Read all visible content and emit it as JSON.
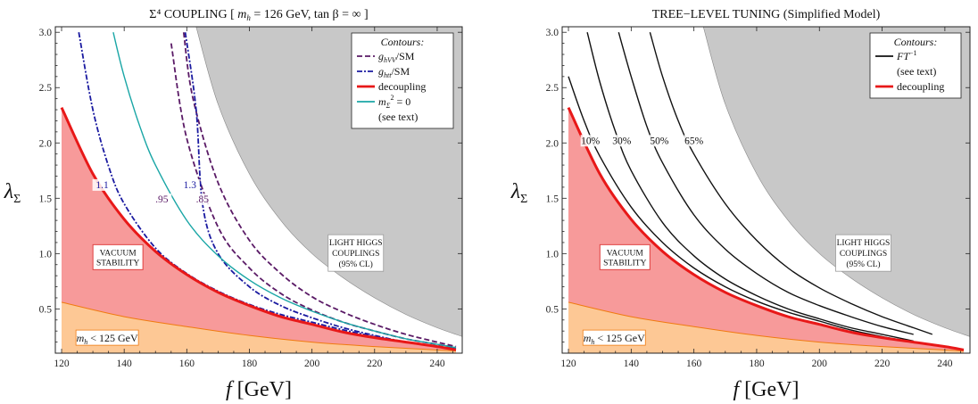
{
  "chart_data": [
    {
      "type": "line",
      "title": "Σ⁴ COUPLING  [ mh = 126 GeV, tan β = ∞ ]",
      "title_parts": {
        "main": "Σ⁴ COUPLING  [ ",
        "mh_sym": "m",
        "mh_sub": "h",
        "mh_rest": " = 126 GeV, tan β = ∞ ]"
      },
      "xlabel": "f [GeV]",
      "ylabel": "λΣ",
      "xlim": [
        118,
        248
      ],
      "ylim": [
        0.1,
        3.05
      ],
      "xticks": [
        120,
        140,
        160,
        180,
        200,
        220,
        240
      ],
      "yticks": [
        0.5,
        1.0,
        1.5,
        2.0,
        2.5,
        3.0
      ],
      "ytick_labels": [
        "0.5",
        "1.0",
        "1.5",
        "2.0",
        "2.5",
        "3.0"
      ],
      "regions": {
        "light_higgs": {
          "label_lines": [
            "LIGHT HIGGS",
            "COUPLINGS",
            "(95% CL)"
          ],
          "color": "#c8c8c8",
          "x_start_at_top": 163
        },
        "vacuum_stability": {
          "label_lines": [
            "VACUUM",
            "STABILITY"
          ],
          "color": "#f79a9a"
        },
        "mh_bound": {
          "label": "mh < 125 GeV",
          "color": "#fdc895"
        }
      },
      "decoupling": {
        "x": [
          120,
          130,
          140,
          150,
          160,
          170,
          180,
          190,
          200,
          210,
          220,
          230,
          240,
          246
        ],
        "y": [
          2.32,
          1.72,
          1.31,
          1.02,
          0.81,
          0.65,
          0.53,
          0.43,
          0.36,
          0.29,
          0.24,
          0.2,
          0.16,
          0.13
        ],
        "color": "#e81818"
      },
      "mh125": {
        "x": [
          120,
          140,
          160,
          180,
          200,
          220,
          246
        ],
        "y": [
          0.56,
          0.43,
          0.34,
          0.26,
          0.2,
          0.16,
          0.12
        ],
        "color": "#f07a10"
      },
      "series": [
        {
          "label": ".95",
          "x": [
            155,
            160,
            170,
            180,
            190,
            200,
            210,
            220,
            230,
            240,
            246
          ],
          "y": [
            2.9,
            2.04,
            1.24,
            0.87,
            0.64,
            0.49,
            0.38,
            0.3,
            0.23,
            0.18,
            0.15
          ],
          "color": "#5a1a66",
          "dash": "6,3"
        },
        {
          "label": ".85",
          "x": [
            159,
            162,
            170,
            180,
            190,
            200,
            210,
            220,
            230,
            240,
            246
          ],
          "y": [
            3.0,
            2.4,
            1.64,
            1.12,
            0.82,
            0.61,
            0.47,
            0.36,
            0.27,
            0.2,
            0.16
          ],
          "color": "#5a1a66",
          "dash": "6,3"
        },
        {
          "label": "1.1",
          "x": [
            125.5,
            130,
            135,
            140,
            150,
            160,
            170,
            180,
            190,
            200,
            210,
            220,
            230,
            240,
            246
          ],
          "y": [
            3.0,
            2.3,
            1.79,
            1.45,
            1.05,
            0.82,
            0.66,
            0.54,
            0.45,
            0.38,
            0.31,
            0.25,
            0.2,
            0.16,
            0.14
          ],
          "color": "#1a1aa0",
          "dash": "6,2,2,2"
        },
        {
          "label": "1.3",
          "x": [
            159.5,
            163,
            165,
            170,
            180,
            190,
            200,
            210,
            220,
            230,
            240,
            246
          ],
          "y": [
            3.0,
            2.3,
            1.45,
            1.0,
            0.7,
            0.53,
            0.42,
            0.33,
            0.26,
            0.2,
            0.16,
            0.14
          ],
          "color": "#1a1aa0",
          "dash": "6,2,2,2"
        },
        {
          "label": "mΣ² = 0",
          "x": [
            136.5,
            140,
            145,
            150,
            160,
            170,
            180,
            190,
            200,
            210,
            220,
            230,
            240,
            246
          ],
          "y": [
            3.0,
            2.6,
            2.15,
            1.8,
            1.3,
            0.98,
            0.76,
            0.6,
            0.48,
            0.38,
            0.3,
            0.23,
            0.18,
            0.15
          ],
          "color": "#1aa6a6",
          "dash": ""
        }
      ],
      "contour_labels": [
        {
          "text": "1.1",
          "x": 133,
          "y": 1.6,
          "color": "#1a1aa0"
        },
        {
          "text": ".95",
          "x": 152,
          "y": 1.47,
          "color": "#5a1a66"
        },
        {
          "text": "1.3",
          "x": 161,
          "y": 1.6,
          "color": "#1a1aa0"
        },
        {
          "text": ".85",
          "x": 165,
          "y": 1.47,
          "color": "#5a1a66"
        }
      ],
      "legend": {
        "position": "top-right",
        "title": "Contours:",
        "entries": [
          {
            "label": "ghVV/SM",
            "sym": "g",
            "sub": "hVV",
            "rest": "/SM",
            "color": "#5a1a66",
            "dash": "6,3"
          },
          {
            "label": "ghtt/SM",
            "sym": "g",
            "sub": "htt",
            "rest": "/SM",
            "color": "#1a1aa0",
            "dash": "6,2,2,2"
          },
          {
            "label": "decoupling",
            "sym": "",
            "sub": "",
            "rest": "decoupling",
            "color": "#e81818",
            "dash": ""
          },
          {
            "label": "mΣ² = 0",
            "sym": "m",
            "sub": "Σ",
            "rest": " = 0",
            "sup": "2",
            "color": "#1aa6a6",
            "dash": ""
          },
          {
            "label": "(see text)",
            "sym": "",
            "sub": "",
            "rest": "(see text)",
            "color": "none",
            "dash": ""
          }
        ]
      }
    },
    {
      "type": "line",
      "title": "TREE−LEVEL TUNING (Simplified Model)",
      "xlabel": "f [GeV]",
      "ylabel": "λΣ",
      "xlim": [
        118,
        248
      ],
      "ylim": [
        0.1,
        3.05
      ],
      "xticks": [
        120,
        140,
        160,
        180,
        200,
        220,
        240
      ],
      "yticks": [
        0.5,
        1.0,
        1.5,
        2.0,
        2.5,
        3.0
      ],
      "ytick_labels": [
        "0.5",
        "1.0",
        "1.5",
        "2.0",
        "2.5",
        "3.0"
      ],
      "regions": {
        "light_higgs": {
          "label_lines": [
            "LIGHT HIGGS",
            "COUPLINGS",
            "(95% CL)"
          ],
          "color": "#c8c8c8",
          "x_start_at_top": 163
        },
        "vacuum_stability": {
          "label_lines": [
            "VACUUM",
            "STABILITY"
          ],
          "color": "#f79a9a"
        },
        "mh_bound": {
          "label": "mh < 125 GeV",
          "color": "#fdc895"
        }
      },
      "decoupling": {
        "x": [
          120,
          130,
          140,
          150,
          160,
          170,
          180,
          190,
          200,
          210,
          220,
          230,
          240,
          246
        ],
        "y": [
          2.32,
          1.72,
          1.31,
          1.02,
          0.81,
          0.65,
          0.53,
          0.43,
          0.36,
          0.29,
          0.24,
          0.2,
          0.16,
          0.13
        ],
        "color": "#e81818"
      },
      "mh125": {
        "x": [
          120,
          140,
          160,
          180,
          200,
          220,
          246
        ],
        "y": [
          0.56,
          0.43,
          0.34,
          0.26,
          0.2,
          0.16,
          0.12
        ],
        "color": "#f07a10"
      },
      "series": [
        {
          "label": "10%",
          "x": [
            120,
            125,
            130,
            140,
            150,
            160,
            170,
            180,
            190,
            200,
            210,
            220,
            230
          ],
          "y": [
            2.6,
            2.2,
            1.88,
            1.42,
            1.1,
            0.87,
            0.7,
            0.57,
            0.47,
            0.39,
            0.31,
            0.25,
            0.2
          ],
          "color": "#111",
          "dash": ""
        },
        {
          "label": "30%",
          "x": [
            126,
            130,
            135,
            140,
            150,
            160,
            170,
            180,
            190,
            200,
            210,
            220,
            230
          ],
          "y": [
            3.0,
            2.55,
            2.1,
            1.75,
            1.28,
            0.98,
            0.77,
            0.62,
            0.5,
            0.41,
            0.33,
            0.27,
            0.21
          ],
          "color": "#111",
          "dash": ""
        },
        {
          "label": "50%",
          "x": [
            136,
            140,
            145,
            150,
            160,
            170,
            180,
            190,
            200,
            210,
            220,
            230
          ],
          "y": [
            3.0,
            2.6,
            2.15,
            1.82,
            1.35,
            1.04,
            0.82,
            0.65,
            0.53,
            0.43,
            0.34,
            0.27
          ],
          "color": "#111",
          "dash": ""
        },
        {
          "label": "65%",
          "x": [
            146,
            150,
            155,
            160,
            170,
            180,
            190,
            200,
            210,
            220,
            230,
            236
          ],
          "y": [
            3.0,
            2.6,
            2.2,
            1.9,
            1.45,
            1.12,
            0.87,
            0.69,
            0.55,
            0.43,
            0.33,
            0.27
          ],
          "color": "#111",
          "dash": ""
        }
      ],
      "contour_labels": [
        {
          "text": "10%",
          "x": 127,
          "y": 2.0,
          "color": "#111"
        },
        {
          "text": "30%",
          "x": 137,
          "y": 2.0,
          "color": "#111"
        },
        {
          "text": "50%",
          "x": 149,
          "y": 2.0,
          "color": "#111"
        },
        {
          "text": "65%",
          "x": 160,
          "y": 2.0,
          "color": "#111"
        }
      ],
      "legend": {
        "position": "top-right",
        "title": "Contours:",
        "entries": [
          {
            "label": "FT⁻¹",
            "sym": "FT",
            "sub": "",
            "sup": "−1",
            "rest": "",
            "color": "#111",
            "dash": ""
          },
          {
            "label": "(see text)",
            "sym": "",
            "sub": "",
            "rest": "(see text)",
            "color": "none",
            "dash": ""
          },
          {
            "label": "decoupling",
            "sym": "",
            "sub": "",
            "rest": "decoupling",
            "color": "#e81818",
            "dash": ""
          }
        ]
      }
    }
  ]
}
